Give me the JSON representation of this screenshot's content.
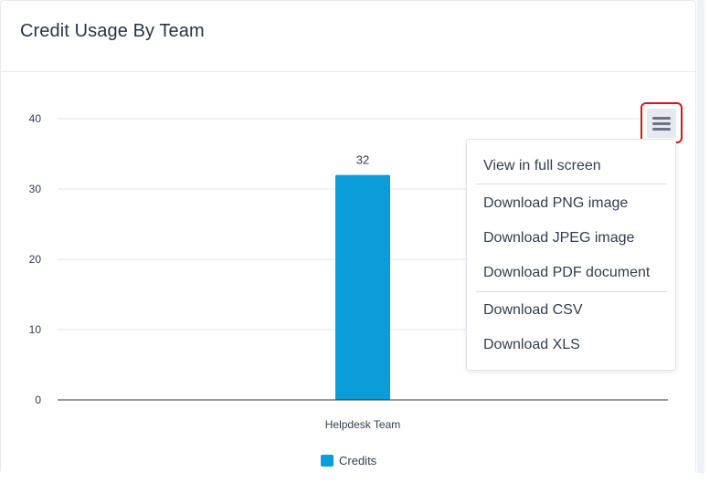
{
  "card": {
    "title": "Credit Usage By Team"
  },
  "colors": {
    "bar": "#0a9dd9",
    "gridline": "#e3e6eb",
    "axis": "#333333",
    "menu_highlight": "#d01b1b"
  },
  "export_menu": {
    "button_icon": "hamburger-menu-icon",
    "items": [
      "View in full screen",
      "Download PNG image",
      "Download JPEG image",
      "Download PDF document",
      "Download CSV",
      "Download XLS"
    ]
  },
  "chart_data": {
    "type": "bar",
    "categories": [
      "Helpdesk Team"
    ],
    "series": [
      {
        "name": "Credits",
        "values": [
          32
        ]
      }
    ],
    "data_labels": [
      "32"
    ],
    "yticks": [
      "0",
      "10",
      "20",
      "30",
      "40"
    ],
    "ylim": [
      0,
      40
    ],
    "grid": true,
    "legend": "bottom-center"
  }
}
